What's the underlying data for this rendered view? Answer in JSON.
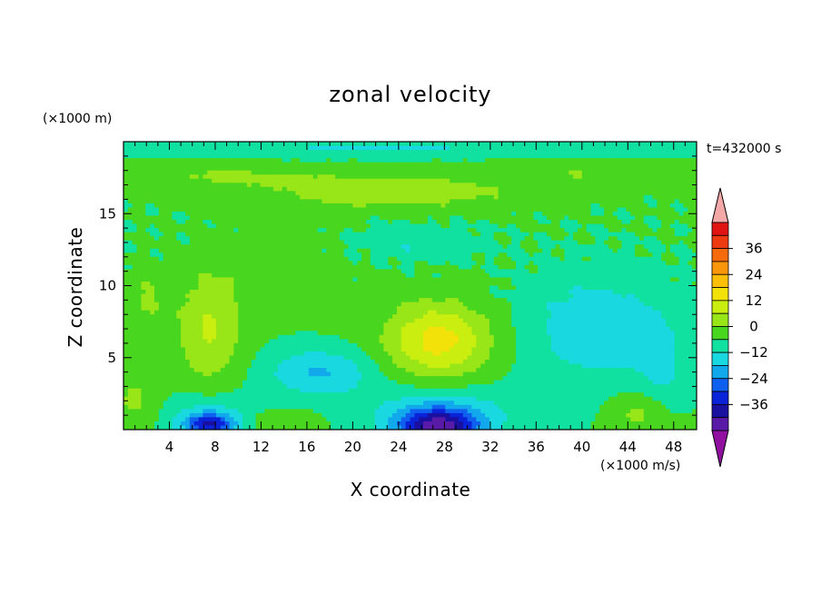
{
  "chart_data": {
    "type": "heatmap",
    "title": "zonal velocity",
    "xlabel": "X coordinate",
    "ylabel": "Z coordinate",
    "x_unit_label": "(×1000 m/s)",
    "y_unit_label": "(×1000 m)",
    "time_label": "t=432000 s",
    "xlim": [
      0,
      50
    ],
    "ylim": [
      0,
      20
    ],
    "x_ticks": [
      4,
      8,
      12,
      16,
      20,
      24,
      28,
      32,
      36,
      40,
      44,
      48
    ],
    "y_ticks": [
      5,
      10,
      15
    ],
    "colorbar": {
      "ticks": [
        36,
        24,
        12,
        0,
        -12,
        -24,
        -36
      ],
      "levels_top_to_bottom": [
        42,
        36,
        30,
        24,
        18,
        12,
        6,
        0,
        -6,
        -12,
        -18,
        -24,
        -30,
        -36
      ],
      "colors_top_to_bottom": [
        "#e11414",
        "#ee3a10",
        "#f46a0c",
        "#f9960a",
        "#fbbf09",
        "#f2e20a",
        "#c9ee10",
        "#98e618",
        "#49d61e",
        "#10e0a0",
        "#1ad8e0",
        "#12a8ec",
        "#1060f0",
        "#0a22d8",
        "#1a10a0",
        "#5a1aa8"
      ],
      "over_color": "#f4a8a8",
      "under_color": "#9010a0",
      "extend": "both"
    },
    "features": [
      {
        "x": 27.5,
        "z": 0.4,
        "value": -34,
        "desc": "strong negative core near bottom"
      },
      {
        "x": 7.5,
        "z": 0.4,
        "value": -28,
        "desc": "negative core near bottom"
      },
      {
        "x": 27.5,
        "z": 6.2,
        "value": 20,
        "desc": "positive maximum"
      },
      {
        "x": 7.5,
        "z": 7.0,
        "value": 12,
        "desc": "positive lobe"
      },
      {
        "x": 17.0,
        "z": 4.0,
        "value": -12,
        "desc": "negative lobe"
      },
      {
        "x": 42.0,
        "z": 7.0,
        "value": -12,
        "desc": "broad negative region"
      },
      {
        "x": 24.0,
        "z": 16.5,
        "value": 9,
        "desc": "positive band aloft"
      },
      {
        "x": 2.0,
        "z": 9.0,
        "value": 6,
        "desc": "positive near left"
      }
    ]
  }
}
